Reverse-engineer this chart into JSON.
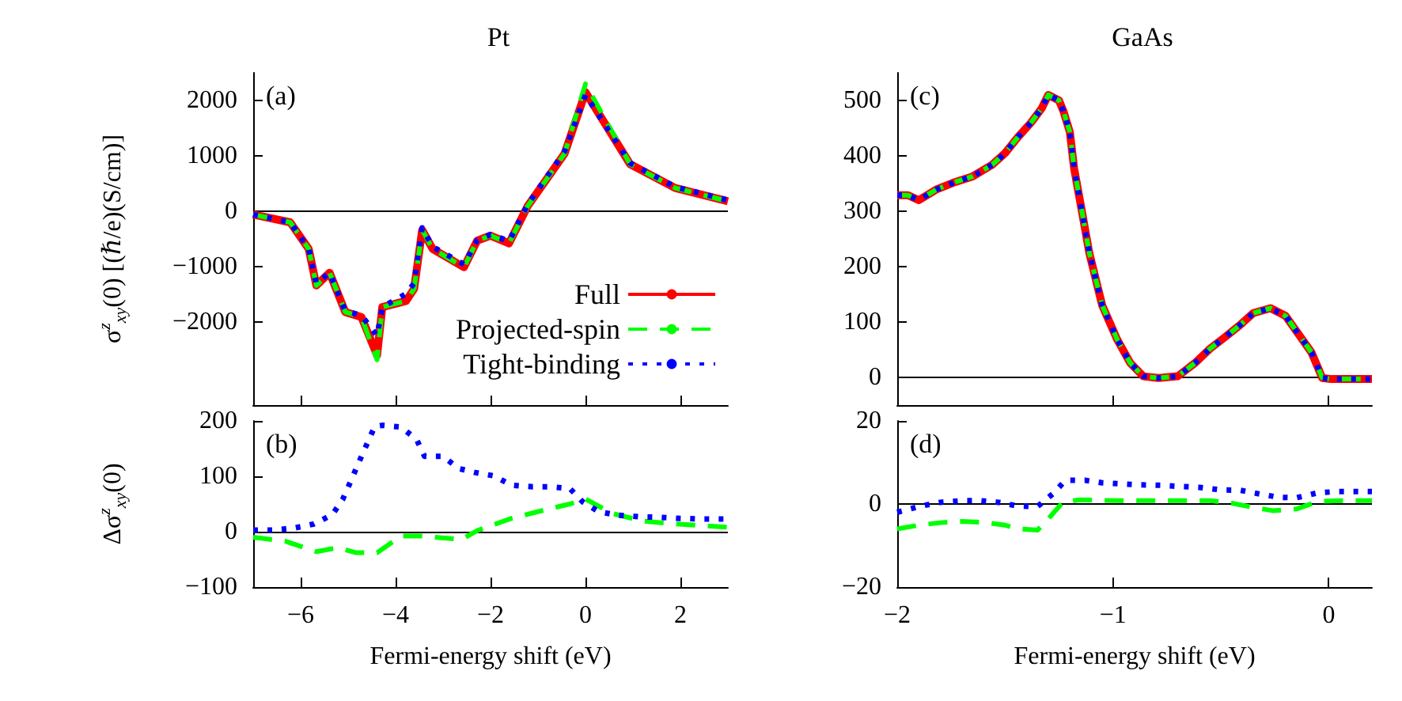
{
  "chart_data": [
    {
      "type": "line",
      "title": "Pt",
      "ylabel": "σ$^{z}$$_{xy}$(0) [(ℏ/e)(S/cm)]",
      "annotations": [
        "(a)"
      ],
      "xlim": [
        -7,
        3
      ],
      "xticks": [
        -6,
        -4,
        -2,
        0,
        2
      ],
      "ylim": [
        -3500,
        2500
      ],
      "yticks": [
        -2000,
        -1000,
        0,
        1000,
        2000
      ],
      "tick_labels": "y",
      "legend": "bottom right",
      "marker": "none",
      "ref_lines": [
        {
          "axis": "y",
          "value": 0,
          "color": "#000000"
        }
      ],
      "x": [
        -7,
        -6.22,
        -5.83,
        -5.67,
        -5.39,
        -5.06,
        -4.72,
        -4.39,
        -4.28,
        -3.78,
        -3.61,
        -3.44,
        -3.22,
        -2.56,
        -2.28,
        -2,
        -1.61,
        -1.22,
        -0.44,
        0,
        0.94,
        1.89,
        3
      ],
      "series": [
        {
          "name": "Full",
          "color": "#ff0000",
          "line_style": "solid",
          "values": [
            -60,
            -200,
            -680,
            -1340,
            -1110,
            -1820,
            -1910,
            -2600,
            -1730,
            -1620,
            -1400,
            -340,
            -680,
            -1010,
            -530,
            -440,
            -580,
            90,
            1040,
            2150,
            850,
            420,
            180
          ]
        },
        {
          "name": "Projected-spin",
          "color": "#00ff00",
          "line_style": "dashed",
          "values": [
            -60,
            -200,
            -680,
            -1340,
            -1110,
            -1820,
            -1910,
            -2680,
            -1730,
            -1620,
            -1400,
            -340,
            -680,
            -1010,
            -530,
            -440,
            -580,
            90,
            1040,
            2300,
            850,
            420,
            180
          ]
        },
        {
          "name": "Tight-binding",
          "color": "#0000ff",
          "line_style": "dotted",
          "values": [
            -60,
            -200,
            -680,
            -1300,
            -1110,
            -1800,
            -1880,
            -2250,
            -1730,
            -1490,
            -1300,
            -300,
            -640,
            -960,
            -520,
            -420,
            -540,
            120,
            1080,
            2100,
            870,
            440,
            200
          ]
        }
      ]
    },
    {
      "type": "line",
      "xlabel": "Fermi-energy shift (eV)",
      "ylabel": "Δσ$^{z}$$_{xy}$(0)",
      "annotations": [
        "(b)"
      ],
      "xlim": [
        -7,
        3
      ],
      "xticks": [
        -6,
        -4,
        -2,
        0,
        2
      ],
      "ylim": [
        -100,
        200
      ],
      "yticks": [
        -100,
        0,
        100,
        200
      ],
      "marker": "none",
      "ref_lines": [
        {
          "axis": "y",
          "value": 0,
          "color": "#000000"
        }
      ],
      "series": [
        {
          "color": "#00ff00",
          "line_style": "dashed",
          "x": [
            -7,
            -6.33,
            -5.67,
            -5.22,
            -4.83,
            -4.39,
            -3.89,
            -3.44,
            -2.61,
            -2.28,
            -1.56,
            -0.78,
            -0.33,
            0,
            0.56,
            1.22,
            1.89,
            3
          ],
          "values": [
            -10,
            -17,
            -36,
            -29,
            -38,
            -38,
            -8,
            -8,
            -14,
            2,
            24,
            41,
            50,
            59,
            33,
            19,
            14,
            8
          ]
        },
        {
          "color": "#0000ff",
          "line_style": "dotted",
          "x": [
            -7,
            -6.56,
            -6.11,
            -5.72,
            -5.33,
            -5.11,
            -4.94,
            -4.78,
            -4.61,
            -4.44,
            -4.28,
            -3.89,
            -3.56,
            -3.39,
            -3,
            -2.67,
            -2.33,
            -1.94,
            -1.56,
            -1.11,
            -0.72,
            -0.33,
            -0.06,
            0.28,
            0.67,
            1.11,
            1.56,
            2,
            2.39,
            2.78,
            3
          ],
          "values": [
            3,
            3,
            7,
            14,
            31,
            59,
            92,
            124,
            157,
            190,
            192,
            189,
            167,
            136,
            136,
            114,
            107,
            101,
            84,
            81,
            81,
            78,
            54,
            36,
            30,
            27,
            26,
            24,
            23,
            23,
            23
          ]
        }
      ]
    },
    {
      "type": "line",
      "title": "GaAs",
      "annotations": [
        "(c)"
      ],
      "xlim": [
        -2,
        0.2
      ],
      "xticks": [
        -2,
        -1,
        0
      ],
      "ylim": [
        -50,
        550
      ],
      "yticks": [
        0,
        100,
        200,
        300,
        400,
        500
      ],
      "tick_labels": "y",
      "marker": "none",
      "ref_lines": [
        {
          "axis": "y",
          "value": 0,
          "color": "#000000"
        }
      ],
      "x": [
        -2,
        -1.95,
        -1.9,
        -1.82,
        -1.73,
        -1.65,
        -1.56,
        -1.5,
        -1.44,
        -1.38,
        -1.33,
        -1.3,
        -1.25,
        -1.23,
        -1.2,
        -1.18,
        -1.14,
        -1.11,
        -1.05,
        -0.98,
        -0.92,
        -0.86,
        -0.79,
        -0.7,
        -0.62,
        -0.55,
        -0.48,
        -0.41,
        -0.35,
        -0.27,
        -0.2,
        -0.14,
        -0.08,
        -0.03,
        0.01,
        0.2
      ],
      "series": [
        {
          "color": "#ff0000",
          "line_style": "solid",
          "values": [
            329,
            329,
            320,
            339,
            353,
            363,
            384,
            405,
            434,
            460,
            486,
            510,
            500,
            481,
            443,
            377,
            291,
            225,
            130,
            68,
            26,
            2,
            -1,
            2,
            26,
            52,
            73,
            95,
            116,
            125,
            111,
            78,
            45,
            -1,
            -3,
            -3
          ]
        },
        {
          "color": "#00ff00",
          "line_style": "dashed",
          "values": [
            329,
            329,
            320,
            339,
            353,
            363,
            384,
            405,
            434,
            460,
            486,
            510,
            500,
            481,
            443,
            377,
            291,
            225,
            130,
            68,
            26,
            2,
            -1,
            2,
            26,
            52,
            73,
            95,
            116,
            125,
            111,
            78,
            45,
            -1,
            -3,
            -3
          ]
        },
        {
          "color": "#0000ff",
          "line_style": "dotted",
          "values": [
            329,
            329,
            320,
            339,
            353,
            363,
            384,
            405,
            434,
            460,
            486,
            510,
            500,
            481,
            443,
            377,
            291,
            225,
            130,
            68,
            26,
            2,
            -1,
            2,
            26,
            52,
            73,
            95,
            116,
            125,
            111,
            78,
            45,
            -1,
            -3,
            -3
          ]
        }
      ]
    },
    {
      "type": "line",
      "xlabel": "Fermi-energy shift (eV)",
      "annotations": [
        "(d)"
      ],
      "xlim": [
        -2,
        0.2
      ],
      "xticks": [
        -2,
        -1,
        0
      ],
      "ylim": [
        -20,
        20
      ],
      "yticks": [
        -20,
        0,
        20
      ],
      "marker": "none",
      "ref_lines": [
        {
          "axis": "y",
          "value": 0,
          "color": "#000000"
        }
      ],
      "series": [
        {
          "color": "#00ff00",
          "line_style": "dashed",
          "x": [
            -2,
            -1.9,
            -1.8,
            -1.7,
            -1.6,
            -1.5,
            -1.44,
            -1.35,
            -1.29,
            -1.23,
            -1.15,
            -0.98,
            -0.74,
            -0.55,
            -0.45,
            -0.35,
            -0.26,
            -0.15,
            -0.05,
            0.07,
            0.2
          ],
          "values": [
            -6,
            -5.1,
            -4.5,
            -4.2,
            -4.4,
            -5.1,
            -6,
            -6.3,
            -3,
            0.6,
            1,
            0.8,
            0.8,
            0.8,
            0.2,
            -0.8,
            -1.6,
            -1.2,
            0.6,
            0.8,
            0.8
          ]
        },
        {
          "color": "#0000ff",
          "line_style": "dotted",
          "x": [
            -2,
            -1.9,
            -1.8,
            -1.7,
            -1.62,
            -1.53,
            -1.44,
            -1.35,
            -1.28,
            -1.22,
            -1.13,
            -1.05,
            -0.95,
            -0.87,
            -0.78,
            -0.68,
            -0.6,
            -0.5,
            -0.41,
            -0.32,
            -0.23,
            -0.15,
            -0.05,
            0.04,
            0.14,
            0.2
          ],
          "values": [
            -2,
            -0.6,
            0.4,
            0.8,
            0.8,
            0.4,
            -0.5,
            -0.6,
            2.4,
            5.7,
            5.7,
            5.1,
            4.8,
            4.6,
            4.5,
            4.2,
            4,
            3.4,
            3.3,
            2.4,
            1.6,
            1.5,
            2.7,
            3,
            3,
            3
          ]
        }
      ]
    }
  ]
}
